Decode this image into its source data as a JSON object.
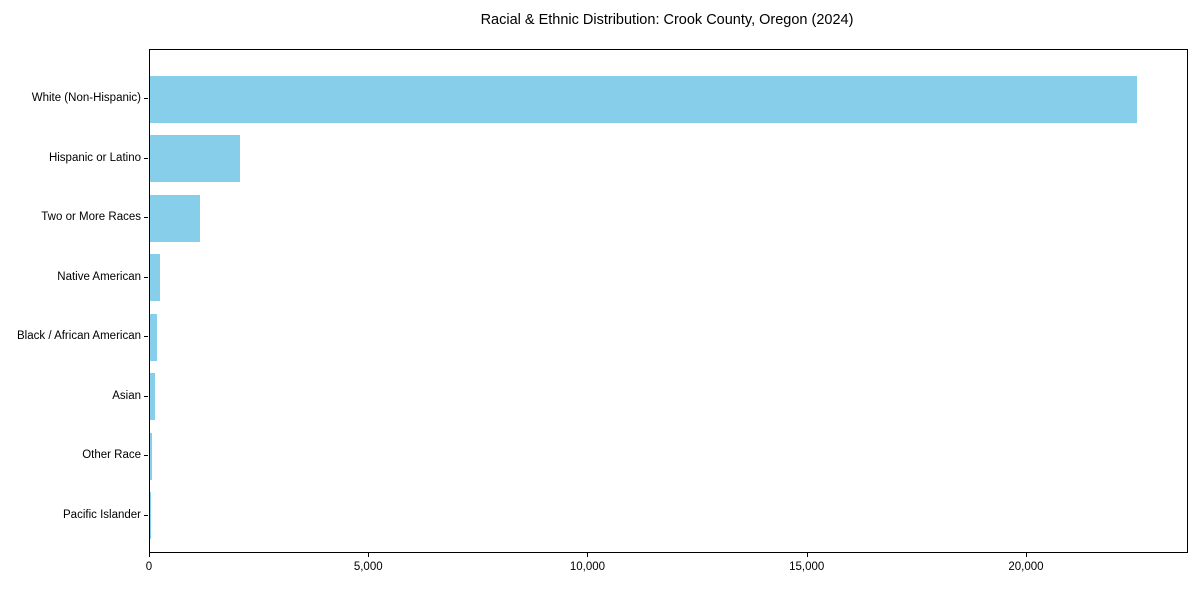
{
  "chart_data": {
    "type": "bar",
    "orientation": "horizontal",
    "title": "Racial & Ethnic Distribution: Crook County, Oregon (2024)",
    "categories": [
      "White (Non-Hispanic)",
      "Hispanic or Latino",
      "Two or More Races",
      "Native American",
      "Black / African American",
      "Asian",
      "Other Race",
      "Pacific Islander"
    ],
    "values": [
      22500,
      2050,
      1150,
      230,
      160,
      110,
      50,
      10
    ],
    "category_order": "top-to-bottom",
    "xlabel": "",
    "ylabel": "",
    "xlim": [
      0,
      23650
    ],
    "xticks": [
      0,
      5000,
      10000,
      15000,
      20000
    ],
    "xtick_labels": [
      "0",
      "5,000",
      "10,000",
      "15,000",
      "20,000"
    ],
    "bar_color": "#87CEEB",
    "grid": false,
    "legend": null,
    "background_color": "#ffffff",
    "spine_color": "#000000"
  }
}
